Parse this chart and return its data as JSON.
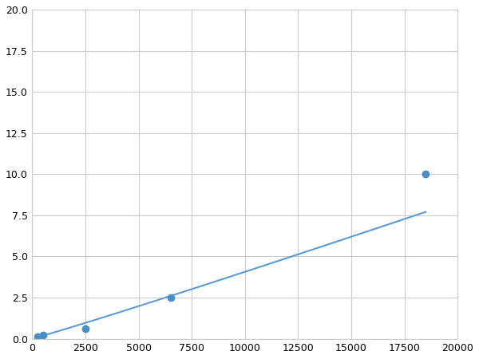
{
  "x": [
    250,
    500,
    2500,
    6500,
    18500
  ],
  "y": [
    0.1,
    0.2,
    0.6,
    2.5,
    10.0
  ],
  "line_color": "#5b9bd5",
  "marker_color": "#4a8cc4",
  "marker_size": 6,
  "xlim": [
    0,
    20000
  ],
  "ylim": [
    0,
    20
  ],
  "xticks": [
    0,
    2500,
    5000,
    7500,
    10000,
    12500,
    15000,
    17500,
    20000
  ],
  "yticks": [
    0.0,
    2.5,
    5.0,
    7.5,
    10.0,
    12.5,
    15.0,
    17.5,
    20.0
  ],
  "grid_color": "#cccccc",
  "background_color": "#ffffff",
  "figure_background": "#ffffff"
}
